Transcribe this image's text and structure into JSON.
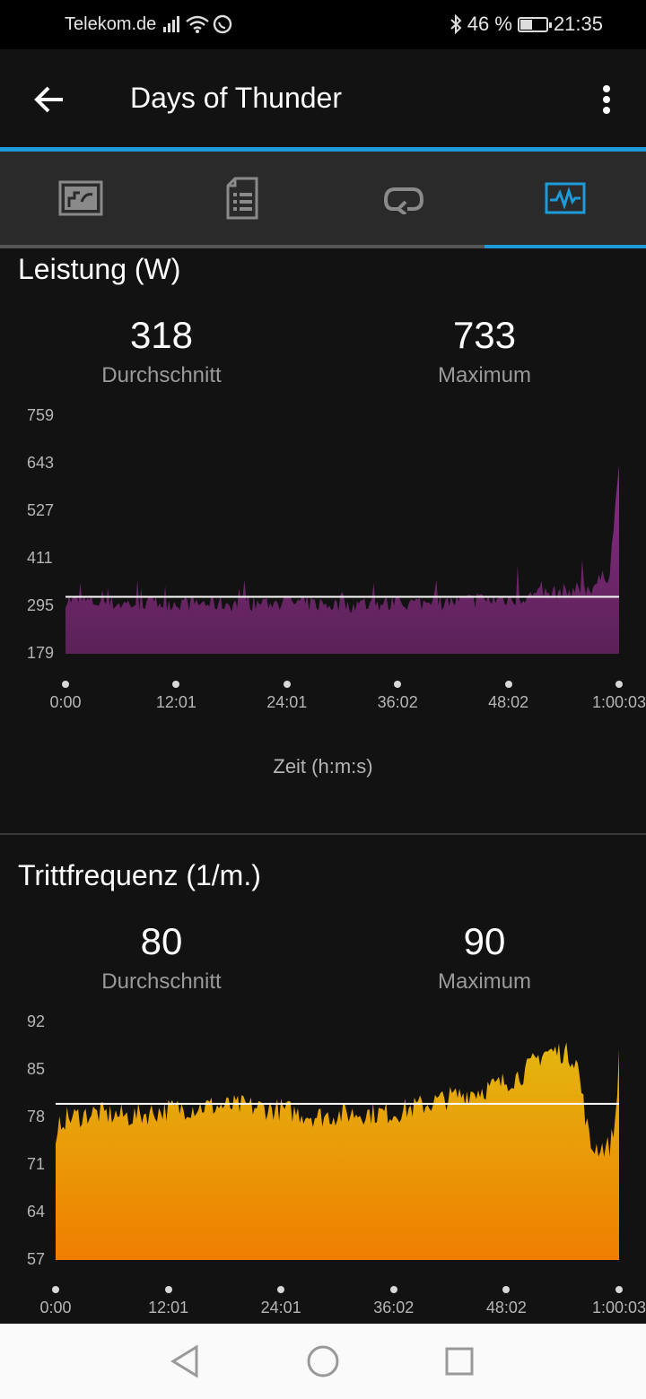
{
  "status": {
    "carrier": "Telekom.de",
    "battery": "46 %",
    "battery_level": 0.46,
    "time": "21:35"
  },
  "app_bar": {
    "title": "Days of Thunder",
    "back_icon": "arrow-left-icon",
    "menu_icon": "more-vert-icon"
  },
  "tabs": [
    {
      "icon": "map-icon",
      "active": false
    },
    {
      "icon": "details-icon",
      "active": false
    },
    {
      "icon": "laps-icon",
      "active": false
    },
    {
      "icon": "charts-icon",
      "active": true
    }
  ],
  "colors": {
    "accent": "#1d9bd9",
    "power_top": "#8a2c86",
    "power_bottom": "#5a2257",
    "cadence_top": "#e3b70f",
    "cadence_bottom": "#f07e00"
  },
  "power": {
    "title": "Leistung (W)",
    "avg_value": "318",
    "avg_label": "Durchschnitt",
    "max_value": "733",
    "max_label": "Maximum",
    "x_axis_title": "Zeit (h:m:s)"
  },
  "cadence": {
    "title": "Trittfrequenz (1/m.)",
    "avg_value": "80",
    "avg_label": "Durchschnitt",
    "max_value": "90",
    "max_label": "Maximum"
  },
  "chart_data": [
    {
      "type": "area",
      "title": "Leistung (W)",
      "xlabel": "Zeit (h:m:s)",
      "ylabel": "",
      "yticks": [
        "759",
        "643",
        "527",
        "411",
        "295",
        "179"
      ],
      "xticks": [
        "0:00",
        "12:01",
        "24:01",
        "36:02",
        "48:02",
        "1:00:03"
      ],
      "ylim": [
        179,
        759
      ],
      "x_minutes": [
        0,
        6,
        12,
        18,
        24,
        30,
        36,
        42,
        48,
        51,
        54,
        57,
        59,
        60.05
      ],
      "series": [
        {
          "values": [
            315,
            305,
            308,
            305,
            308,
            302,
            305,
            310,
            318,
            325,
            335,
            345,
            380,
            640
          ]
        }
      ],
      "average": 318
    },
    {
      "type": "area",
      "title": "Trittfrequenz (1/m.)",
      "xlabel": "",
      "ylabel": "",
      "yticks": [
        "92",
        "85",
        "78",
        "71",
        "64",
        "57"
      ],
      "xticks": [
        "0:00",
        "12:01",
        "24:01",
        "36:02",
        "48:02",
        "1:00:03"
      ],
      "ylim": [
        57,
        92
      ],
      "x_minutes": [
        0,
        0.5,
        4,
        8,
        12,
        16,
        20,
        24,
        28,
        32,
        36,
        40,
        44,
        47,
        50,
        52,
        54,
        55.5,
        57,
        59,
        59.6,
        60.05
      ],
      "series": [
        {
          "values": [
            73,
            78,
            79,
            78.5,
            79.5,
            80,
            80,
            79.5,
            78.5,
            79,
            79,
            80.5,
            82,
            83,
            85,
            88,
            88,
            87,
            74,
            74,
            77,
            88
          ]
        }
      ],
      "average": 80
    }
  ]
}
